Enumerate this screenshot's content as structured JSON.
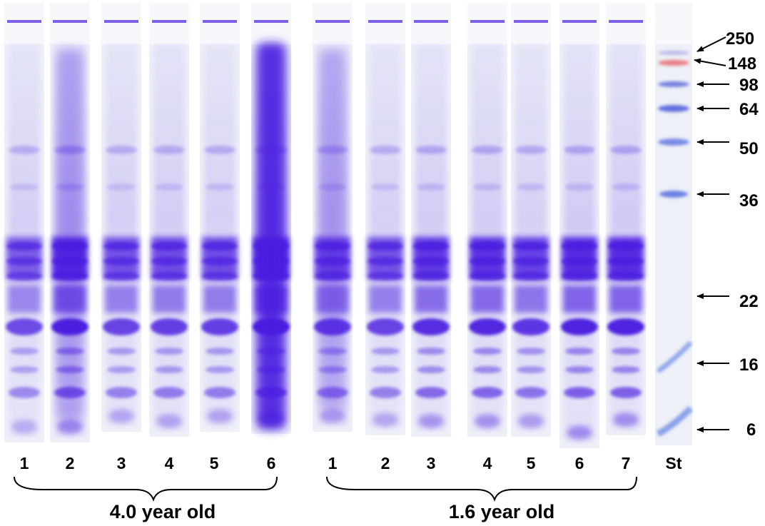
{
  "groups": [
    {
      "label": "4.0 year old",
      "lanes": [
        "1",
        "2",
        "3",
        "4",
        "5",
        "6"
      ]
    },
    {
      "label": "1.6 year old",
      "lanes": [
        "1",
        "2",
        "3",
        "4",
        "5",
        "6",
        "7"
      ]
    }
  ],
  "standard_lane_label": "St",
  "markers": [
    "250",
    "148",
    "98",
    "64",
    "50",
    "36",
    "22",
    "16",
    "6"
  ],
  "colors": {
    "stain": "#4a1fe0",
    "gel": "#eef0f8",
    "background": "#ffffff",
    "marker_red": "#e8707a",
    "text": "#000000"
  }
}
